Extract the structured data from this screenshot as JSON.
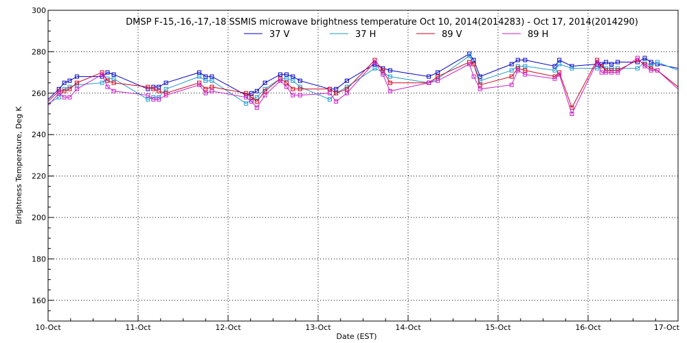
{
  "chart_data": {
    "type": "line",
    "title": "DMSP F-15,-16,-17,-18 SSMIS microwave brightness temperature Oct 10, 2014(2014283) - Oct 17, 2014(2014290)",
    "xlabel": "Date (EST)",
    "ylabel": "Brightness Temperature, Deg K",
    "xlim": [
      0,
      7
    ],
    "ylim": [
      150,
      300
    ],
    "xticks": [
      {
        "v": 0,
        "label": "10-Oct"
      },
      {
        "v": 1,
        "label": "11-Oct"
      },
      {
        "v": 2,
        "label": "12-Oct"
      },
      {
        "v": 3,
        "label": "13-Oct"
      },
      {
        "v": 4,
        "label": "14-Oct"
      },
      {
        "v": 5,
        "label": "15-Oct"
      },
      {
        "v": 6,
        "label": "16-Oct"
      },
      {
        "v": 7,
        "label": "17-Oct"
      }
    ],
    "yticks": [
      160,
      180,
      200,
      220,
      240,
      260,
      280,
      300
    ],
    "grid": true,
    "legend_position": "top",
    "series": [
      {
        "name": "37 V",
        "color": "#0000c8",
        "x": [
          0,
          0.12,
          0.18,
          0.24,
          0.32,
          0.6,
          0.66,
          0.73,
          1.11,
          1.17,
          1.23,
          1.31,
          1.68,
          1.75,
          1.82,
          2.2,
          2.26,
          2.32,
          2.41,
          2.58,
          2.65,
          2.72,
          2.8,
          3.13,
          3.2,
          3.32,
          3.63,
          3.72,
          3.8,
          4.23,
          4.33,
          4.68,
          4.73,
          4.8,
          5.15,
          5.22,
          5.3,
          5.63,
          5.68,
          5.82,
          6.1,
          6.15,
          6.2,
          6.26,
          6.33,
          6.55,
          6.63,
          6.7,
          6.77,
          7.0
        ],
        "values": [
          257,
          262,
          265,
          266,
          268,
          268,
          270,
          269,
          262,
          263,
          263,
          265,
          270,
          268,
          268,
          259,
          260,
          261,
          265,
          269,
          269,
          268,
          266,
          262,
          262,
          266,
          274,
          272,
          271,
          268,
          270,
          279,
          276,
          268,
          274,
          276,
          276,
          273,
          276,
          273,
          274,
          274,
          275,
          274,
          275,
          275,
          277,
          275,
          274,
          272
        ]
      },
      {
        "name": "37 H",
        "color": "#1e9acd",
        "x": [
          0,
          0.12,
          0.18,
          0.24,
          0.32,
          0.6,
          0.66,
          0.73,
          1.11,
          1.17,
          1.23,
          1.31,
          1.68,
          1.75,
          1.82,
          2.2,
          2.26,
          2.32,
          2.41,
          2.58,
          2.65,
          2.72,
          2.8,
          3.13,
          3.2,
          3.32,
          3.63,
          3.72,
          3.8,
          4.23,
          4.33,
          4.68,
          4.73,
          4.8,
          5.15,
          5.22,
          5.3,
          5.63,
          5.68,
          5.82,
          6.1,
          6.15,
          6.2,
          6.26,
          6.33,
          6.55,
          6.63,
          6.7,
          6.77,
          7.0
        ],
        "values": [
          255,
          258,
          262,
          263,
          264,
          265,
          267,
          267,
          257,
          258,
          258,
          262,
          268,
          266,
          266,
          255,
          257,
          258,
          262,
          267,
          267,
          266,
          263,
          257,
          260,
          263,
          272,
          270,
          268,
          265,
          267,
          278,
          274,
          266,
          271,
          273,
          273,
          271,
          274,
          272,
          272,
          273,
          272,
          272,
          272,
          272,
          275,
          273,
          275,
          271
        ]
      },
      {
        "name": "89 V",
        "color": "#d2001e",
        "x": [
          0,
          0.12,
          0.18,
          0.24,
          0.32,
          0.6,
          0.66,
          0.73,
          1.11,
          1.17,
          1.23,
          1.31,
          1.68,
          1.75,
          1.82,
          2.2,
          2.26,
          2.32,
          2.41,
          2.58,
          2.65,
          2.72,
          2.8,
          3.13,
          3.2,
          3.32,
          3.63,
          3.72,
          3.8,
          4.23,
          4.33,
          4.68,
          4.73,
          4.8,
          5.15,
          5.22,
          5.3,
          5.63,
          5.68,
          5.82,
          6.1,
          6.15,
          6.2,
          6.26,
          6.33,
          6.55,
          6.63,
          6.7,
          6.77,
          7.0
        ],
        "values": [
          256,
          261,
          261,
          262,
          265,
          270,
          266,
          265,
          263,
          262,
          261,
          260,
          265,
          262,
          263,
          260,
          258,
          256,
          261,
          267,
          265,
          262,
          262,
          262,
          260,
          262,
          276,
          271,
          265,
          265,
          268,
          275,
          274,
          264,
          268,
          272,
          271,
          268,
          270,
          253,
          276,
          273,
          271,
          271,
          271,
          276,
          274,
          272,
          271,
          263
        ]
      },
      {
        "name": "89 H",
        "color": "#c81ec8",
        "x": [
          0,
          0.12,
          0.18,
          0.24,
          0.32,
          0.6,
          0.66,
          0.73,
          1.11,
          1.17,
          1.23,
          1.31,
          1.68,
          1.75,
          1.82,
          2.2,
          2.26,
          2.32,
          2.41,
          2.58,
          2.65,
          2.72,
          2.8,
          3.13,
          3.2,
          3.32,
          3.63,
          3.72,
          3.8,
          4.23,
          4.33,
          4.68,
          4.73,
          4.8,
          5.15,
          5.22,
          5.3,
          5.63,
          5.68,
          5.82,
          6.1,
          6.15,
          6.2,
          6.26,
          6.33,
          6.55,
          6.63,
          6.7,
          6.77,
          7.0
        ],
        "values": [
          254,
          260,
          258,
          258,
          262,
          269,
          263,
          261,
          259,
          257,
          257,
          259,
          264,
          260,
          261,
          258,
          256,
          253,
          259,
          266,
          263,
          259,
          259,
          260,
          256,
          260,
          275,
          269,
          261,
          265,
          266,
          274,
          268,
          262,
          264,
          271,
          269,
          267,
          269,
          250,
          275,
          270,
          270,
          270,
          270,
          277,
          273,
          271,
          271,
          262
        ]
      }
    ]
  }
}
